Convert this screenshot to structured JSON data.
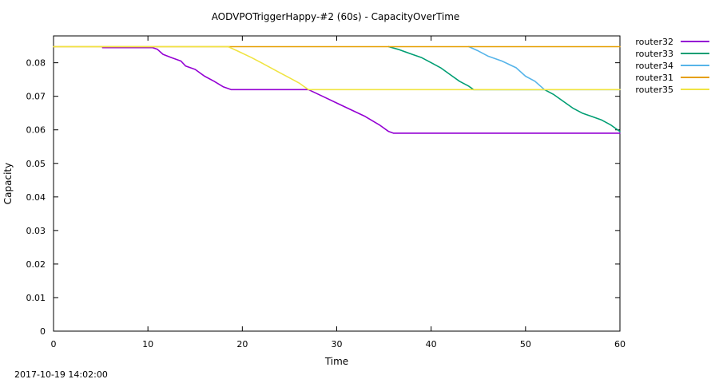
{
  "chart_data": {
    "type": "line",
    "title": "AODVPOTriggerHappy-#2 (60s) - CapacityOverTime",
    "xlabel": "Time",
    "ylabel": "Capacity",
    "xlim": [
      0,
      60
    ],
    "ylim": [
      0,
      0.088
    ],
    "x_ticks": [
      0,
      10,
      20,
      30,
      40,
      50,
      60
    ],
    "y_ticks": [
      0,
      0.01,
      0.02,
      0.03,
      0.04,
      0.05,
      0.06,
      0.07,
      0.08
    ],
    "x_tick_labels": [
      "0",
      "10",
      "20",
      "30",
      "40",
      "50",
      "60"
    ],
    "y_tick_labels": [
      "0",
      "0.01",
      "0.02",
      "0.03",
      "0.04",
      "0.05",
      "0.06",
      "0.07",
      "0.08"
    ],
    "grid": false,
    "legend_position": "outside-right",
    "series": [
      {
        "name": "router32",
        "color": "#9400d3",
        "points": [
          [
            5.2,
            0.0845
          ],
          [
            10.5,
            0.0845
          ],
          [
            11,
            0.084
          ],
          [
            11.6,
            0.0825
          ],
          [
            12.5,
            0.0815
          ],
          [
            13.5,
            0.0805
          ],
          [
            14,
            0.079
          ],
          [
            15,
            0.078
          ],
          [
            16,
            0.076
          ],
          [
            17,
            0.0745
          ],
          [
            18,
            0.0728
          ],
          [
            18.8,
            0.072
          ],
          [
            27,
            0.072
          ],
          [
            28.5,
            0.07
          ],
          [
            30,
            0.068
          ],
          [
            31.5,
            0.066
          ],
          [
            33,
            0.064
          ],
          [
            34.5,
            0.0615
          ],
          [
            35.5,
            0.0595
          ],
          [
            36,
            0.059
          ],
          [
            60,
            0.059
          ]
        ]
      },
      {
        "name": "router33",
        "color": "#009e73",
        "points": [
          [
            35.5,
            0.0848
          ],
          [
            36.5,
            0.084
          ],
          [
            38,
            0.0825
          ],
          [
            39,
            0.0815
          ],
          [
            40,
            0.08
          ],
          [
            41,
            0.0785
          ],
          [
            42,
            0.0765
          ],
          [
            43,
            0.0745
          ],
          [
            44,
            0.073
          ],
          [
            44.5,
            0.072
          ],
          [
            52,
            0.072
          ],
          [
            53,
            0.0705
          ],
          [
            54,
            0.0685
          ],
          [
            55,
            0.0665
          ],
          [
            56,
            0.065
          ],
          [
            57,
            0.064
          ],
          [
            58,
            0.063
          ],
          [
            59,
            0.0615
          ],
          [
            60,
            0.0595
          ]
        ]
      },
      {
        "name": "router34",
        "color": "#56b4e9",
        "points": [
          [
            44,
            0.0848
          ],
          [
            45,
            0.0835
          ],
          [
            46,
            0.082
          ],
          [
            47.5,
            0.0805
          ],
          [
            49,
            0.0785
          ],
          [
            50,
            0.076
          ],
          [
            51,
            0.0745
          ],
          [
            52,
            0.072
          ],
          [
            52.5,
            0.072
          ],
          [
            60,
            0.072
          ]
        ]
      },
      {
        "name": "router31",
        "color": "#e69f00",
        "points": [
          [
            0,
            0.0848
          ],
          [
            60,
            0.0848
          ]
        ]
      },
      {
        "name": "router35",
        "color": "#f0e442",
        "points": [
          [
            0,
            0.0848
          ],
          [
            18.5,
            0.0848
          ],
          [
            19.5,
            0.0835
          ],
          [
            21,
            0.0815
          ],
          [
            22,
            0.08
          ],
          [
            23,
            0.0785
          ],
          [
            24,
            0.077
          ],
          [
            25,
            0.0755
          ],
          [
            26,
            0.074
          ],
          [
            26.5,
            0.073
          ],
          [
            27,
            0.072
          ],
          [
            60,
            0.072
          ]
        ]
      }
    ]
  },
  "footer": {
    "timestamp": "2017-10-19 14:02:00"
  }
}
